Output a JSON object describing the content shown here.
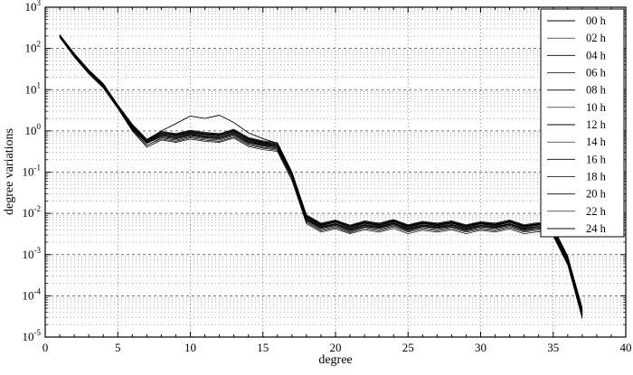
{
  "chart_data": {
    "type": "line",
    "title": "",
    "xlabel": "degree",
    "ylabel": "degree variations",
    "xlim": [
      0,
      40
    ],
    "x_ticks": [
      0,
      5,
      10,
      15,
      20,
      25,
      30,
      35,
      40
    ],
    "y_scale": "log",
    "y_tick_exponents": [
      3,
      2,
      1,
      0,
      -1,
      -2,
      -3,
      -4,
      -5
    ],
    "ylim_exponents": [
      -5,
      3
    ],
    "grid": "dashed horizontal minor+major log gridlines, dashed vertical gridlines at x ticks",
    "legend_position": "upper right",
    "line_color": "#000000",
    "x": [
      1,
      2,
      3,
      4,
      5,
      6,
      7,
      8,
      9,
      10,
      11,
      12,
      13,
      14,
      15,
      16,
      17,
      18,
      19,
      20,
      21,
      22,
      23,
      24,
      25,
      26,
      27,
      28,
      29,
      30,
      31,
      32,
      33,
      34,
      35,
      36,
      37
    ],
    "series": [
      {
        "name": "00 h",
        "values": [
          210,
          75,
          30,
          14,
          4.2,
          1.4,
          0.6,
          1.0,
          1.5,
          2.3,
          2.0,
          2.4,
          1.6,
          0.9,
          0.65,
          0.5,
          0.1,
          0.009,
          0.0055,
          0.0065,
          0.005,
          0.0062,
          0.0055,
          0.0068,
          0.005,
          0.0061,
          0.0055,
          0.0062,
          0.005,
          0.006,
          0.0055,
          0.0065,
          0.005,
          0.0057,
          0.0044,
          0.0009,
          5e-05
        ]
      },
      {
        "name": "02 h",
        "values": [
          195,
          65,
          26,
          12,
          3.7,
          1.1,
          0.45,
          0.64,
          0.56,
          0.68,
          0.6,
          0.56,
          0.71,
          0.45,
          0.38,
          0.34,
          0.07,
          0.006,
          0.0038,
          0.0045,
          0.0034,
          0.0043,
          0.0038,
          0.0047,
          0.0035,
          0.0042,
          0.0038,
          0.0043,
          0.0035,
          0.0041,
          0.0038,
          0.0045,
          0.0035,
          0.0039,
          0.003,
          0.0006,
          3e-05
        ]
      },
      {
        "name": "04 h",
        "values": [
          205,
          72,
          27,
          12.5,
          3.9,
          1.2,
          0.5,
          0.72,
          0.64,
          0.77,
          0.68,
          0.64,
          0.81,
          0.51,
          0.43,
          0.38,
          0.08,
          0.0068,
          0.0043,
          0.0051,
          0.0038,
          0.0048,
          0.0043,
          0.0053,
          0.0039,
          0.0048,
          0.0043,
          0.0048,
          0.0039,
          0.0047,
          0.0043,
          0.0051,
          0.0039,
          0.0044,
          0.0034,
          0.00068,
          3.4e-05
        ]
      },
      {
        "name": "06 h",
        "values": [
          200,
          68,
          28,
          13,
          4.0,
          1.25,
          0.52,
          0.81,
          0.71,
          0.86,
          0.76,
          0.71,
          0.9,
          0.57,
          0.48,
          0.43,
          0.086,
          0.0076,
          0.0048,
          0.0057,
          0.0043,
          0.0054,
          0.0048,
          0.0059,
          0.0044,
          0.0053,
          0.0048,
          0.0054,
          0.0044,
          0.0052,
          0.0048,
          0.0057,
          0.0044,
          0.0049,
          0.0038,
          0.00076,
          3.8e-05
        ]
      },
      {
        "name": "08 h",
        "values": [
          215,
          74,
          29,
          13.5,
          4.2,
          1.35,
          0.58,
          0.89,
          0.79,
          0.95,
          0.84,
          0.79,
          1.0,
          0.63,
          0.53,
          0.47,
          0.095,
          0.0084,
          0.0053,
          0.0063,
          0.0047,
          0.006,
          0.0053,
          0.0065,
          0.0048,
          0.0059,
          0.0053,
          0.006,
          0.0048,
          0.0058,
          0.0053,
          0.0063,
          0.0048,
          0.0055,
          0.0042,
          0.00084,
          4.2e-05
        ]
      },
      {
        "name": "10 h",
        "values": [
          190,
          64,
          25,
          11.5,
          3.6,
          1.05,
          0.44,
          0.68,
          0.6,
          0.72,
          0.64,
          0.6,
          0.76,
          0.48,
          0.4,
          0.36,
          0.072,
          0.0064,
          0.004,
          0.0048,
          0.0036,
          0.0046,
          0.004,
          0.005,
          0.0037,
          0.0045,
          0.004,
          0.0046,
          0.0037,
          0.0044,
          0.004,
          0.0048,
          0.0037,
          0.0042,
          0.0032,
          0.00064,
          3.2e-05
        ]
      },
      {
        "name": "12 h",
        "values": [
          198,
          67,
          27,
          12.5,
          3.8,
          1.15,
          0.5,
          0.77,
          0.68,
          0.81,
          0.72,
          0.68,
          0.86,
          0.54,
          0.45,
          0.41,
          0.081,
          0.0072,
          0.0045,
          0.0054,
          0.004,
          0.0051,
          0.0045,
          0.0056,
          0.0041,
          0.005,
          0.0045,
          0.0051,
          0.0041,
          0.005,
          0.0045,
          0.0054,
          0.0041,
          0.0047,
          0.0036,
          0.00072,
          3.6e-05
        ]
      },
      {
        "name": "14 h",
        "values": [
          208,
          71,
          28,
          13,
          4.0,
          1.3,
          0.55,
          0.85,
          0.75,
          0.9,
          0.8,
          0.75,
          0.95,
          0.6,
          0.5,
          0.45,
          0.09,
          0.008,
          0.005,
          0.006,
          0.0045,
          0.0057,
          0.005,
          0.0062,
          0.0046,
          0.0056,
          0.005,
          0.0057,
          0.0046,
          0.0055,
          0.005,
          0.006,
          0.0046,
          0.0052,
          0.004,
          0.0008,
          4e-05
        ]
      },
      {
        "name": "16 h",
        "values": [
          212,
          73,
          29,
          13.5,
          4.1,
          1.4,
          0.61,
          0.94,
          0.83,
          0.99,
          0.88,
          0.83,
          1.05,
          0.66,
          0.55,
          0.5,
          0.099,
          0.0088,
          0.0055,
          0.0066,
          0.005,
          0.0063,
          0.0055,
          0.0068,
          0.0051,
          0.0062,
          0.0055,
          0.0063,
          0.0051,
          0.0061,
          0.0055,
          0.0066,
          0.0051,
          0.0057,
          0.0044,
          0.00088,
          4.4e-05
        ]
      },
      {
        "name": "18 h",
        "values": [
          185,
          62,
          24,
          11,
          3.5,
          1.0,
          0.4,
          0.6,
          0.53,
          0.63,
          0.56,
          0.53,
          0.67,
          0.42,
          0.35,
          0.32,
          0.063,
          0.0056,
          0.0035,
          0.0042,
          0.0032,
          0.004,
          0.0035,
          0.0043,
          0.0032,
          0.0039,
          0.0035,
          0.004,
          0.0032,
          0.0039,
          0.0035,
          0.0042,
          0.0032,
          0.0036,
          0.0028,
          0.00056,
          2.8e-05
        ]
      },
      {
        "name": "20 h",
        "values": [
          202,
          69,
          27.5,
          12.8,
          3.9,
          1.28,
          0.53,
          0.8,
          0.7,
          0.84,
          0.75,
          0.7,
          0.89,
          0.56,
          0.47,
          0.42,
          0.084,
          0.0075,
          0.0047,
          0.0056,
          0.0042,
          0.0053,
          0.0047,
          0.0058,
          0.0043,
          0.0052,
          0.0047,
          0.0053,
          0.0043,
          0.0051,
          0.0047,
          0.0056,
          0.0043,
          0.0048,
          0.0037,
          0.00075,
          3.7e-05
        ]
      },
      {
        "name": "22 h",
        "values": [
          218,
          76,
          30,
          14,
          4.3,
          1.45,
          0.63,
          0.98,
          0.86,
          1.04,
          0.92,
          0.86,
          1.1,
          0.69,
          0.58,
          0.52,
          0.1,
          0.0092,
          0.0058,
          0.0069,
          0.0052,
          0.0066,
          0.0058,
          0.0071,
          0.0053,
          0.0064,
          0.0058,
          0.0066,
          0.0053,
          0.0063,
          0.0058,
          0.0069,
          0.0053,
          0.006,
          0.0046,
          0.00092,
          4.6e-05
        ]
      },
      {
        "name": "24 h",
        "values": [
          206,
          70,
          28.5,
          13.2,
          4.1,
          1.32,
          0.56,
          0.87,
          0.77,
          0.92,
          0.82,
          0.77,
          0.97,
          0.61,
          0.51,
          0.46,
          0.092,
          0.0082,
          0.0051,
          0.0061,
          0.0046,
          0.0058,
          0.0051,
          0.0063,
          0.0047,
          0.0057,
          0.0051,
          0.0058,
          0.0047,
          0.0056,
          0.0051,
          0.0061,
          0.0047,
          0.0053,
          0.0041,
          0.00082,
          4.1e-05
        ]
      }
    ],
    "legend_labels": [
      "00 h",
      "02 h",
      "04 h",
      "06 h",
      "08 h",
      "10 h",
      "12 h",
      "14 h",
      "16 h",
      "18 h",
      "20 h",
      "22 h",
      "24 h"
    ]
  }
}
